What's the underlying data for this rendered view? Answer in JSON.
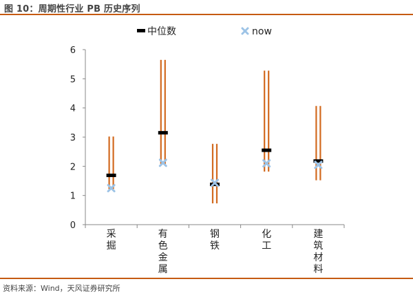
{
  "header": {
    "title": "图 10：周期性行业 PB 历史序列"
  },
  "footer": {
    "source": "资料来源：Wind，天风证券研究所"
  },
  "colors": {
    "accent_rule": "#c55a11",
    "range_lines": "#d2691e",
    "median_marker": "#000000",
    "now_marker": "#9dc3e6",
    "axis": "#888888"
  },
  "chart_data": {
    "type": "scatter",
    "title": "",
    "xlabel": "",
    "ylabel": "",
    "ylim": [
      0,
      6
    ],
    "yticks": [
      "0",
      "1",
      "2",
      "3",
      "4",
      "5",
      "6"
    ],
    "grid": false,
    "legend_position": "top",
    "categories": [
      "采掘",
      "有色金属",
      "钢铁",
      "化工",
      "建筑材料"
    ],
    "ranges": [
      {
        "min": 1.22,
        "max": 3.02
      },
      {
        "min": 2.08,
        "max": 5.65
      },
      {
        "min": 0.73,
        "max": 2.77
      },
      {
        "min": 1.82,
        "max": 5.28
      },
      {
        "min": 1.52,
        "max": 4.07
      }
    ],
    "series": [
      {
        "name": "中位数",
        "marker": "bar",
        "values": [
          1.69,
          3.15,
          1.38,
          2.55,
          2.18
        ]
      },
      {
        "name": "now",
        "marker": "x",
        "values": [
          1.25,
          2.12,
          1.43,
          2.1,
          2.05
        ]
      }
    ]
  }
}
